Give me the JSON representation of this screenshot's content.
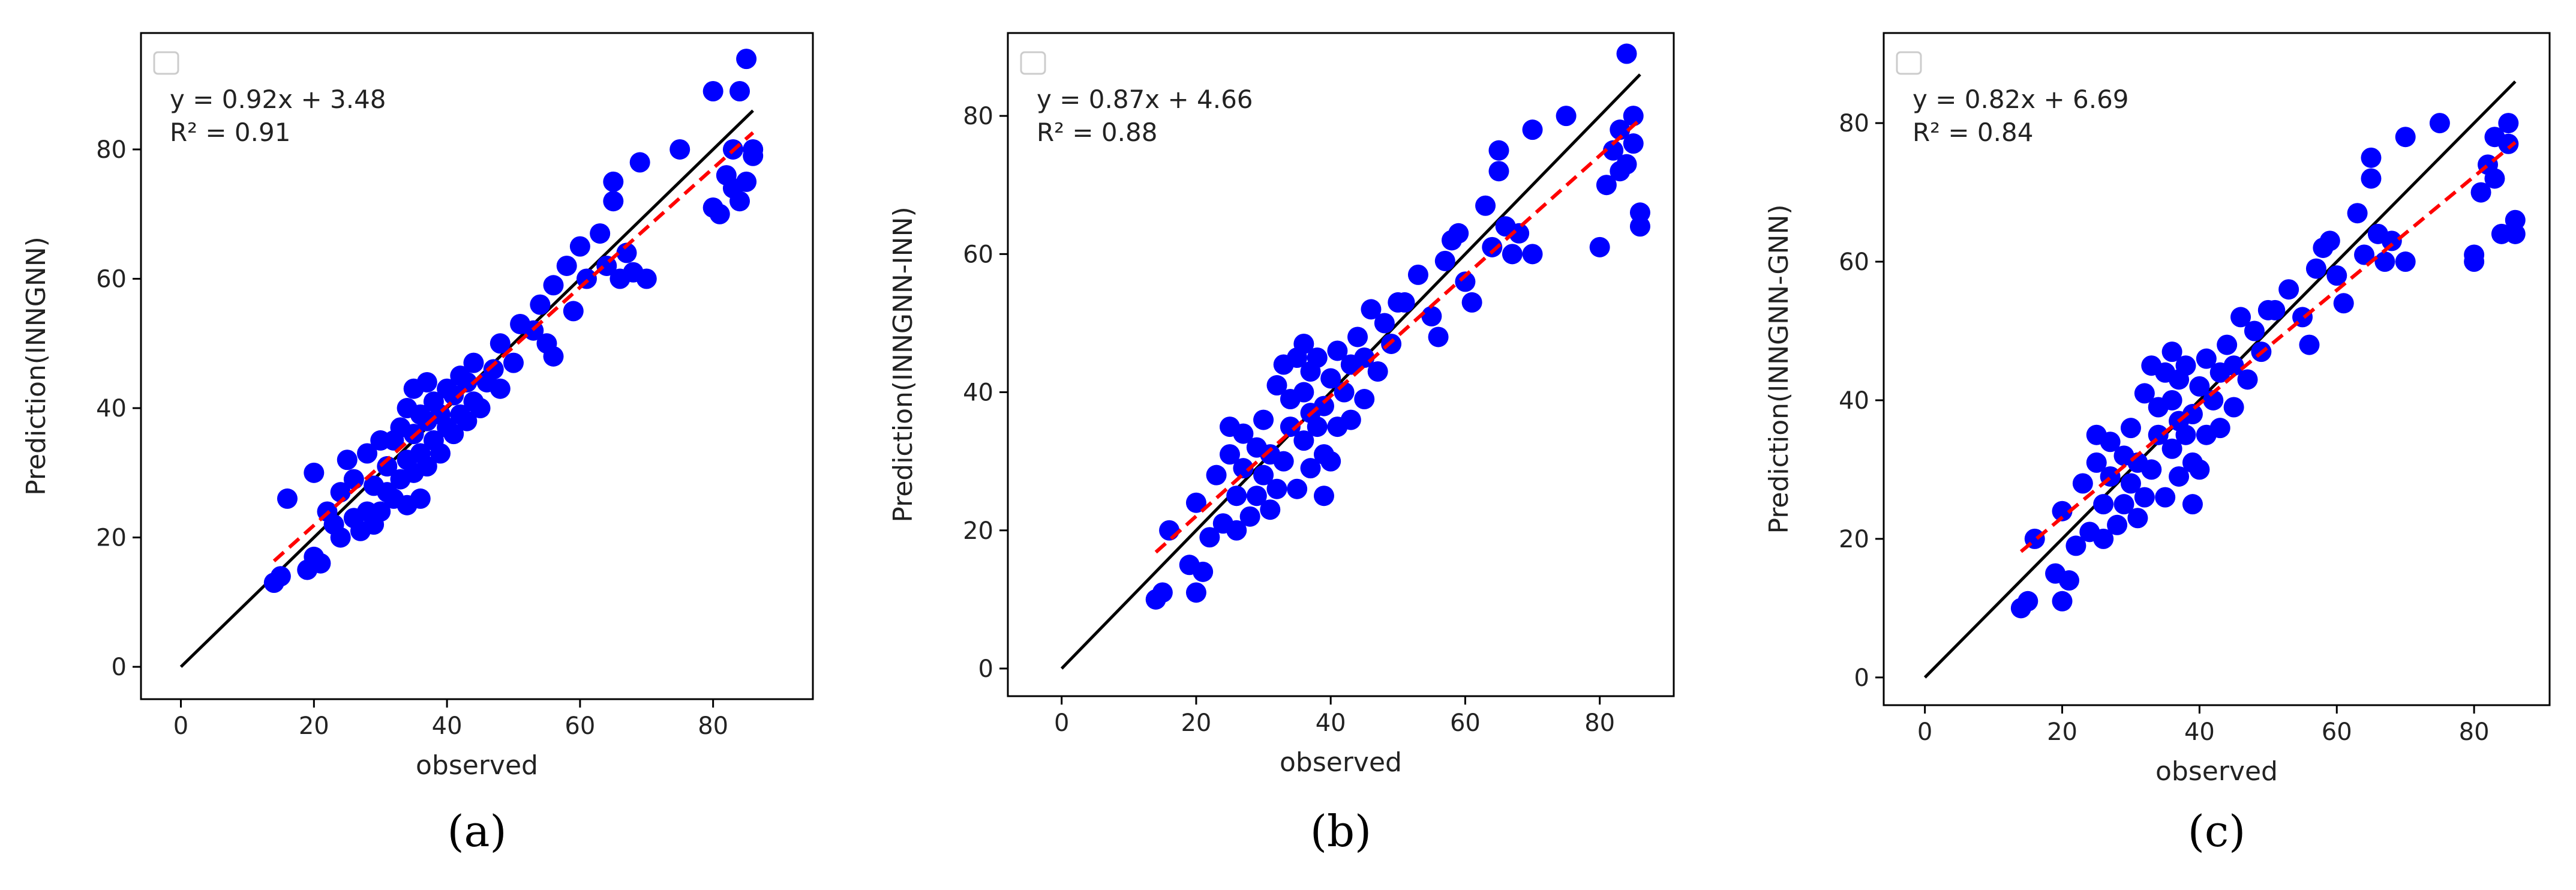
{
  "figure": {
    "panel_labels": [
      "(a)",
      "(b)",
      "(c)"
    ],
    "colors": {
      "points": "#0000ff",
      "fit_line": "#ff0000",
      "identity_line": "#000000",
      "axes": "#000000",
      "text": "#222222"
    }
  },
  "chart_data": [
    {
      "type": "scatter",
      "panel": "(a)",
      "xlabel": "observed",
      "ylabel": "Prediction(INNGNN)",
      "xticks": [
        0,
        20,
        40,
        60,
        80
      ],
      "yticks": [
        0,
        20,
        40,
        60,
        80
      ],
      "xlim": [
        -6,
        95
      ],
      "ylim": [
        -5,
        98
      ],
      "equation": "y = 0.92x + 3.48",
      "r2": "R² = 0.91",
      "fit": {
        "slope": 0.92,
        "intercept": 3.48,
        "x_range": [
          14,
          86
        ]
      },
      "identity": {
        "x_range": [
          0,
          86
        ]
      },
      "points": [
        [
          14,
          13
        ],
        [
          15,
          14
        ],
        [
          16,
          26
        ],
        [
          19,
          15
        ],
        [
          20,
          17
        ],
        [
          20,
          30
        ],
        [
          21,
          16
        ],
        [
          22,
          24
        ],
        [
          23,
          22
        ],
        [
          24,
          20
        ],
        [
          24,
          27
        ],
        [
          25,
          32
        ],
        [
          26,
          23
        ],
        [
          26,
          29
        ],
        [
          27,
          21
        ],
        [
          28,
          24
        ],
        [
          28,
          33
        ],
        [
          29,
          22
        ],
        [
          29,
          28
        ],
        [
          30,
          24
        ],
        [
          30,
          35
        ],
        [
          31,
          27
        ],
        [
          31,
          31
        ],
        [
          32,
          26
        ],
        [
          32,
          35
        ],
        [
          33,
          29
        ],
        [
          33,
          37
        ],
        [
          34,
          25
        ],
        [
          34,
          32
        ],
        [
          34,
          40
        ],
        [
          35,
          30
        ],
        [
          35,
          36
        ],
        [
          35,
          43
        ],
        [
          36,
          26
        ],
        [
          36,
          33
        ],
        [
          36,
          39
        ],
        [
          37,
          31
        ],
        [
          37,
          38
        ],
        [
          37,
          44
        ],
        [
          38,
          35
        ],
        [
          38,
          41
        ],
        [
          39,
          33
        ],
        [
          39,
          39
        ],
        [
          40,
          37
        ],
        [
          40,
          43
        ],
        [
          41,
          36
        ],
        [
          41,
          42
        ],
        [
          42,
          39
        ],
        [
          42,
          45
        ],
        [
          43,
          38
        ],
        [
          43,
          44
        ],
        [
          44,
          41
        ],
        [
          44,
          47
        ],
        [
          45,
          40
        ],
        [
          46,
          44
        ],
        [
          47,
          46
        ],
        [
          48,
          43
        ],
        [
          48,
          50
        ],
        [
          50,
          47
        ],
        [
          51,
          53
        ],
        [
          53,
          52
        ],
        [
          54,
          56
        ],
        [
          55,
          50
        ],
        [
          56,
          48
        ],
        [
          56,
          59
        ],
        [
          58,
          62
        ],
        [
          59,
          55
        ],
        [
          60,
          65
        ],
        [
          61,
          60
        ],
        [
          63,
          67
        ],
        [
          64,
          62
        ],
        [
          65,
          72
        ],
        [
          65,
          75
        ],
        [
          66,
          60
        ],
        [
          67,
          64
        ],
        [
          68,
          61
        ],
        [
          69,
          78
        ],
        [
          70,
          60
        ],
        [
          75,
          80
        ],
        [
          80,
          71
        ],
        [
          80,
          89
        ],
        [
          81,
          70
        ],
        [
          82,
          76
        ],
        [
          83,
          74
        ],
        [
          83,
          80
        ],
        [
          84,
          72
        ],
        [
          84,
          89
        ],
        [
          85,
          75
        ],
        [
          85,
          94
        ],
        [
          86,
          79
        ],
        [
          86,
          80
        ]
      ]
    },
    {
      "type": "scatter",
      "panel": "(b)",
      "xlabel": "observed",
      "ylabel": "Prediction(INNGNN-INN)",
      "xticks": [
        0,
        20,
        40,
        60,
        80
      ],
      "yticks": [
        0,
        20,
        40,
        60,
        80
      ],
      "xlim": [
        -8,
        91
      ],
      "ylim": [
        -4,
        92
      ],
      "equation": "y = 0.87x + 4.66",
      "r2": "R² = 0.88",
      "fit": {
        "slope": 0.87,
        "intercept": 4.66,
        "x_range": [
          14,
          86
        ]
      },
      "identity": {
        "x_range": [
          0,
          86
        ]
      },
      "points": [
        [
          14,
          10
        ],
        [
          15,
          11
        ],
        [
          16,
          20
        ],
        [
          19,
          15
        ],
        [
          20,
          11
        ],
        [
          20,
          24
        ],
        [
          21,
          14
        ],
        [
          22,
          19
        ],
        [
          23,
          28
        ],
        [
          24,
          21
        ],
        [
          25,
          35
        ],
        [
          25,
          31
        ],
        [
          26,
          25
        ],
        [
          26,
          20
        ],
        [
          27,
          29
        ],
        [
          27,
          34
        ],
        [
          28,
          22
        ],
        [
          29,
          25
        ],
        [
          29,
          32
        ],
        [
          30,
          28
        ],
        [
          30,
          36
        ],
        [
          31,
          23
        ],
        [
          31,
          31
        ],
        [
          32,
          26
        ],
        [
          32,
          41
        ],
        [
          33,
          30
        ],
        [
          33,
          44
        ],
        [
          34,
          35
        ],
        [
          34,
          39
        ],
        [
          35,
          45
        ],
        [
          35,
          26
        ],
        [
          36,
          33
        ],
        [
          36,
          40
        ],
        [
          36,
          47
        ],
        [
          37,
          29
        ],
        [
          37,
          37
        ],
        [
          37,
          43
        ],
        [
          38,
          35
        ],
        [
          38,
          45
        ],
        [
          39,
          25
        ],
        [
          39,
          31
        ],
        [
          39,
          38
        ],
        [
          40,
          30
        ],
        [
          40,
          42
        ],
        [
          41,
          35
        ],
        [
          41,
          46
        ],
        [
          42,
          40
        ],
        [
          43,
          36
        ],
        [
          43,
          44
        ],
        [
          44,
          48
        ],
        [
          45,
          39
        ],
        [
          45,
          45
        ],
        [
          46,
          52
        ],
        [
          47,
          43
        ],
        [
          48,
          50
        ],
        [
          49,
          47
        ],
        [
          50,
          53
        ],
        [
          51,
          53
        ],
        [
          53,
          57
        ],
        [
          55,
          51
        ],
        [
          56,
          48
        ],
        [
          57,
          59
        ],
        [
          58,
          62
        ],
        [
          59,
          63
        ],
        [
          60,
          56
        ],
        [
          61,
          53
        ],
        [
          63,
          67
        ],
        [
          64,
          61
        ],
        [
          65,
          72
        ],
        [
          65,
          75
        ],
        [
          66,
          64
        ],
        [
          67,
          60
        ],
        [
          68,
          63
        ],
        [
          70,
          60
        ],
        [
          70,
          78
        ],
        [
          75,
          80
        ],
        [
          80,
          61
        ],
        [
          81,
          70
        ],
        [
          82,
          75
        ],
        [
          83,
          72
        ],
        [
          83,
          78
        ],
        [
          84,
          89
        ],
        [
          84,
          73
        ],
        [
          85,
          80
        ],
        [
          85,
          76
        ],
        [
          86,
          64
        ],
        [
          86,
          66
        ]
      ]
    },
    {
      "type": "scatter",
      "panel": "(c)",
      "xlabel": "observed",
      "ylabel": "Prediction(INNGNN-GNN)",
      "xticks": [
        0,
        20,
        40,
        60,
        80
      ],
      "yticks": [
        0,
        20,
        40,
        60,
        80
      ],
      "xlim": [
        -6,
        91
      ],
      "ylim": [
        -4,
        93
      ],
      "equation": "y = 0.82x + 6.69",
      "r2": "R² = 0.84",
      "fit": {
        "slope": 0.82,
        "intercept": 6.69,
        "x_range": [
          14,
          86
        ]
      },
      "identity": {
        "x_range": [
          0,
          86
        ]
      },
      "points": [
        [
          14,
          10
        ],
        [
          15,
          11
        ],
        [
          16,
          20
        ],
        [
          19,
          15
        ],
        [
          20,
          11
        ],
        [
          20,
          24
        ],
        [
          21,
          14
        ],
        [
          22,
          19
        ],
        [
          23,
          28
        ],
        [
          24,
          21
        ],
        [
          25,
          35
        ],
        [
          25,
          31
        ],
        [
          26,
          25
        ],
        [
          26,
          20
        ],
        [
          27,
          29
        ],
        [
          27,
          34
        ],
        [
          28,
          22
        ],
        [
          29,
          25
        ],
        [
          29,
          32
        ],
        [
          30,
          28
        ],
        [
          30,
          36
        ],
        [
          31,
          23
        ],
        [
          31,
          31
        ],
        [
          32,
          26
        ],
        [
          32,
          41
        ],
        [
          33,
          30
        ],
        [
          33,
          45
        ],
        [
          34,
          35
        ],
        [
          34,
          39
        ],
        [
          35,
          44
        ],
        [
          35,
          26
        ],
        [
          36,
          33
        ],
        [
          36,
          40
        ],
        [
          36,
          47
        ],
        [
          37,
          29
        ],
        [
          37,
          37
        ],
        [
          37,
          43
        ],
        [
          38,
          35
        ],
        [
          38,
          45
        ],
        [
          39,
          25
        ],
        [
          39,
          31
        ],
        [
          39,
          38
        ],
        [
          40,
          30
        ],
        [
          40,
          42
        ],
        [
          41,
          35
        ],
        [
          41,
          46
        ],
        [
          42,
          40
        ],
        [
          43,
          36
        ],
        [
          43,
          44
        ],
        [
          44,
          48
        ],
        [
          45,
          39
        ],
        [
          45,
          45
        ],
        [
          46,
          52
        ],
        [
          47,
          43
        ],
        [
          48,
          50
        ],
        [
          49,
          47
        ],
        [
          50,
          53
        ],
        [
          51,
          53
        ],
        [
          53,
          56
        ],
        [
          55,
          52
        ],
        [
          56,
          48
        ],
        [
          57,
          59
        ],
        [
          58,
          62
        ],
        [
          59,
          63
        ],
        [
          60,
          58
        ],
        [
          61,
          54
        ],
        [
          63,
          67
        ],
        [
          64,
          61
        ],
        [
          65,
          72
        ],
        [
          65,
          75
        ],
        [
          66,
          64
        ],
        [
          67,
          60
        ],
        [
          68,
          63
        ],
        [
          70,
          60
        ],
        [
          70,
          78
        ],
        [
          75,
          80
        ],
        [
          80,
          61
        ],
        [
          80,
          60
        ],
        [
          81,
          70
        ],
        [
          82,
          74
        ],
        [
          83,
          72
        ],
        [
          83,
          78
        ],
        [
          84,
          64
        ],
        [
          85,
          80
        ],
        [
          85,
          77
        ],
        [
          86,
          64
        ],
        [
          86,
          66
        ]
      ]
    }
  ]
}
